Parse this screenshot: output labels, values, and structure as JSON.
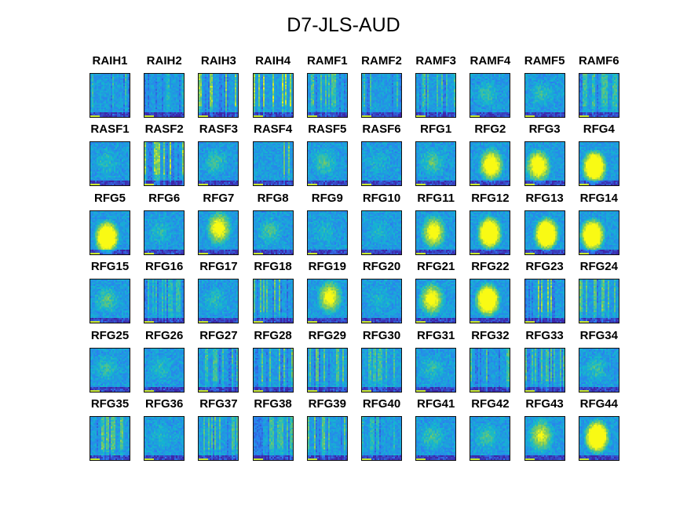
{
  "chart_data": {
    "type": "heatmap",
    "title": "D7-JLS-AUD",
    "grid": {
      "rows": 6,
      "cols": 10
    },
    "colormap": [
      "#3e26a8",
      "#2c7df1",
      "#13b8ce",
      "#7bca5f",
      "#f9fa14"
    ],
    "panels": [
      {
        "label": "RAIH1",
        "pattern": "stripes",
        "hot": 0.25
      },
      {
        "label": "RAIH2",
        "pattern": "stripes",
        "hot": 0.2
      },
      {
        "label": "RAIH3",
        "pattern": "stripes",
        "hot": 0.55
      },
      {
        "label": "RAIH4",
        "pattern": "stripes",
        "hot": 0.6
      },
      {
        "label": "RAMF1",
        "pattern": "stripes",
        "hot": 0.35
      },
      {
        "label": "RAMF2",
        "pattern": "stripes",
        "hot": 0.3
      },
      {
        "label": "RAMF3",
        "pattern": "stripes",
        "hot": 0.3
      },
      {
        "label": "RAMF4",
        "pattern": "diffuse",
        "hot": 0.25
      },
      {
        "label": "RAMF5",
        "pattern": "diffuse",
        "hot": 0.25
      },
      {
        "label": "RAMF6",
        "pattern": "stripes",
        "hot": 0.3
      },
      {
        "label": "RASF1",
        "pattern": "diffuse",
        "hot": 0.2
      },
      {
        "label": "RASF2",
        "pattern": "stripes",
        "hot": 0.55
      },
      {
        "label": "RASF3",
        "pattern": "diffuse",
        "hot": 0.3
      },
      {
        "label": "RASF4",
        "pattern": "stripes",
        "hot": 0.45
      },
      {
        "label": "RASF5",
        "pattern": "diffuse",
        "hot": 0.35
      },
      {
        "label": "RASF6",
        "pattern": "diffuse",
        "hot": 0.15
      },
      {
        "label": "RFG1",
        "pattern": "diffuse",
        "hot": 0.35
      },
      {
        "label": "RFG2",
        "pattern": "blob",
        "hot": 0.7
      },
      {
        "label": "RFG3",
        "pattern": "blob",
        "hot": 0.7
      },
      {
        "label": "RFG4",
        "pattern": "blob",
        "hot": 0.95
      },
      {
        "label": "RFG5",
        "pattern": "blob",
        "hot": 0.95
      },
      {
        "label": "RFG6",
        "pattern": "diffuse",
        "hot": 0.2
      },
      {
        "label": "RFG7",
        "pattern": "blob",
        "hot": 0.6
      },
      {
        "label": "RFG8",
        "pattern": "diffuse",
        "hot": 0.35
      },
      {
        "label": "RFG9",
        "pattern": "diffuse",
        "hot": 0.15
      },
      {
        "label": "RFG10",
        "pattern": "diffuse",
        "hot": 0.15
      },
      {
        "label": "RFG11",
        "pattern": "blob",
        "hot": 0.6
      },
      {
        "label": "RFG12",
        "pattern": "blob",
        "hot": 0.95
      },
      {
        "label": "RFG13",
        "pattern": "blob",
        "hot": 1.0
      },
      {
        "label": "RFG14",
        "pattern": "blob",
        "hot": 0.95
      },
      {
        "label": "RFG15",
        "pattern": "diffuse",
        "hot": 0.35
      },
      {
        "label": "RFG16",
        "pattern": "stripes",
        "hot": 0.25
      },
      {
        "label": "RFG17",
        "pattern": "diffuse",
        "hot": 0.2
      },
      {
        "label": "RFG18",
        "pattern": "stripes",
        "hot": 0.4
      },
      {
        "label": "RFG19",
        "pattern": "blob",
        "hot": 0.55
      },
      {
        "label": "RFG20",
        "pattern": "diffuse",
        "hot": 0.15
      },
      {
        "label": "RFG21",
        "pattern": "blob",
        "hot": 0.6
      },
      {
        "label": "RFG22",
        "pattern": "blob",
        "hot": 0.95
      },
      {
        "label": "RFG23",
        "pattern": "stripes",
        "hot": 0.55
      },
      {
        "label": "RFG24",
        "pattern": "stripes",
        "hot": 0.4
      },
      {
        "label": "RFG25",
        "pattern": "diffuse",
        "hot": 0.25
      },
      {
        "label": "RFG26",
        "pattern": "diffuse",
        "hot": 0.2
      },
      {
        "label": "RFG27",
        "pattern": "stripes",
        "hot": 0.3
      },
      {
        "label": "RFG28",
        "pattern": "stripes",
        "hot": 0.4
      },
      {
        "label": "RFG29",
        "pattern": "stripes",
        "hot": 0.4
      },
      {
        "label": "RFG30",
        "pattern": "stripes",
        "hot": 0.3
      },
      {
        "label": "RFG31",
        "pattern": "diffuse",
        "hot": 0.25
      },
      {
        "label": "RFG32",
        "pattern": "stripes",
        "hot": 0.35
      },
      {
        "label": "RFG33",
        "pattern": "stripes",
        "hot": 0.35
      },
      {
        "label": "RFG34",
        "pattern": "diffuse",
        "hot": 0.25
      },
      {
        "label": "RFG35",
        "pattern": "stripes",
        "hot": 0.4
      },
      {
        "label": "RFG36",
        "pattern": "diffuse",
        "hot": 0.15
      },
      {
        "label": "RFG37",
        "pattern": "stripes",
        "hot": 0.35
      },
      {
        "label": "RFG38",
        "pattern": "stripes",
        "hot": 0.3
      },
      {
        "label": "RFG39",
        "pattern": "stripes",
        "hot": 0.4
      },
      {
        "label": "RFG40",
        "pattern": "stripes",
        "hot": 0.2
      },
      {
        "label": "RFG41",
        "pattern": "diffuse",
        "hot": 0.3
      },
      {
        "label": "RFG42",
        "pattern": "diffuse",
        "hot": 0.3
      },
      {
        "label": "RFG43",
        "pattern": "blob",
        "hot": 0.45
      },
      {
        "label": "RFG44",
        "pattern": "blob",
        "hot": 1.0
      }
    ]
  }
}
